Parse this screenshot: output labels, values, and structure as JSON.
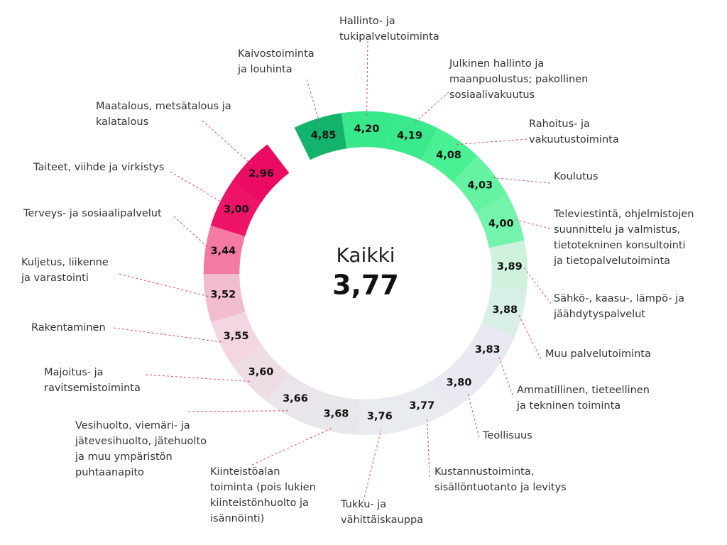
{
  "chart_data": {
    "type": "donut",
    "center_label": "Kaikki",
    "center_value": 3.77,
    "center_value_label": "3,77",
    "categories": [
      [
        "Kaivostoiminta",
        "ja louhinta"
      ],
      [
        "Hallinto- ja",
        "tukipalvelutoiminta"
      ],
      [
        "Julkinen hallinto ja",
        "maanpuolustus; pakollinen",
        "sosiaalivakuutus"
      ],
      [
        "Rahoitus- ja",
        "vakuutustoiminta"
      ],
      [
        "Koulutus"
      ],
      [
        "Televiestintä, ohjelmistojen",
        "suunnittelu ja valmistus,",
        "tietotekninen konsultointi",
        "ja tietopalvelutoiminta"
      ],
      [
        "Sähkö-, kaasu-, lämpö- ja",
        "jäähdytyspalvelut"
      ],
      [
        "Muu palvelutoiminta"
      ],
      [
        "Ammatillinen, tieteellinen",
        "ja tekninen toiminta"
      ],
      [
        "Teollisuus"
      ],
      [
        "Kustannustoiminta,",
        "sisällöntuotanto ja levitys"
      ],
      [
        "Tukku- ja",
        "vähittäiskauppa"
      ],
      [
        "Kiinteistöalan",
        "toiminta (pois lukien",
        "kiinteistönhuolto ja",
        "isännöinti)"
      ],
      [
        "Vesihuolto, viemäri- ja",
        "jätevesihuolto, jätehuolto",
        "ja muu ympäristön",
        "puhtaanapito"
      ],
      [
        "Majoitus- ja",
        "ravitsemistoiminta"
      ],
      [
        "Rakentaminen"
      ],
      [
        "Kuljetus, liikenne",
        "ja  varastointi"
      ],
      [
        "Terveys- ja sosiaalipalvelut"
      ],
      [
        "Taiteet, viihde ja virkistys"
      ],
      [
        "Maatalous, metsätalous ja",
        "kalatalous"
      ]
    ],
    "values": [
      4.85,
      4.2,
      4.19,
      4.08,
      4.03,
      4.0,
      3.89,
      3.88,
      3.83,
      3.8,
      3.77,
      3.76,
      3.68,
      3.66,
      3.6,
      3.55,
      3.52,
      3.44,
      3.0,
      2.96
    ],
    "value_labels": [
      "4,85",
      "4,20",
      "4,19",
      "4,08",
      "4,03",
      "4,00",
      "3,89",
      "3,88",
      "3,83",
      "3,80",
      "3,77",
      "3,76",
      "3,68",
      "3,66",
      "3,60",
      "3,55",
      "3,52",
      "3,44",
      "3,00",
      "2,96"
    ]
  }
}
